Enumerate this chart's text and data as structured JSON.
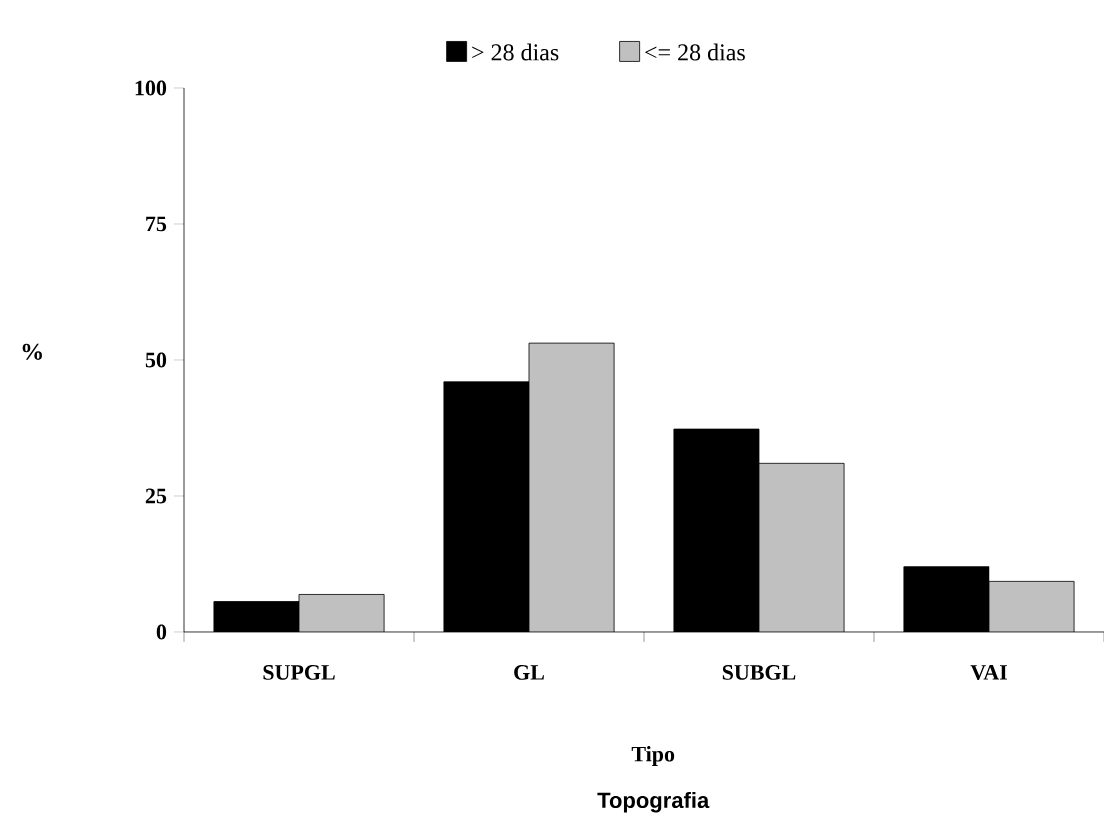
{
  "chart_data": {
    "type": "bar",
    "title": "Topografia",
    "xlabel": "Tipo",
    "ylabel": "%",
    "categories": [
      "SUPGL",
      "GL",
      "SUBGL",
      "VAI"
    ],
    "series": [
      {
        "name": "> 28 dias",
        "color": "#000000",
        "values": [
          5.6,
          46.0,
          37.3,
          12.0
        ]
      },
      {
        "name": "<= 28 dias",
        "color": "#c0c0c0",
        "values": [
          6.9,
          53.1,
          31.0,
          9.3
        ]
      }
    ],
    "ylim": [
      0,
      100
    ],
    "yticks": [
      0,
      25,
      50,
      75,
      100
    ],
    "legend": "top"
  }
}
